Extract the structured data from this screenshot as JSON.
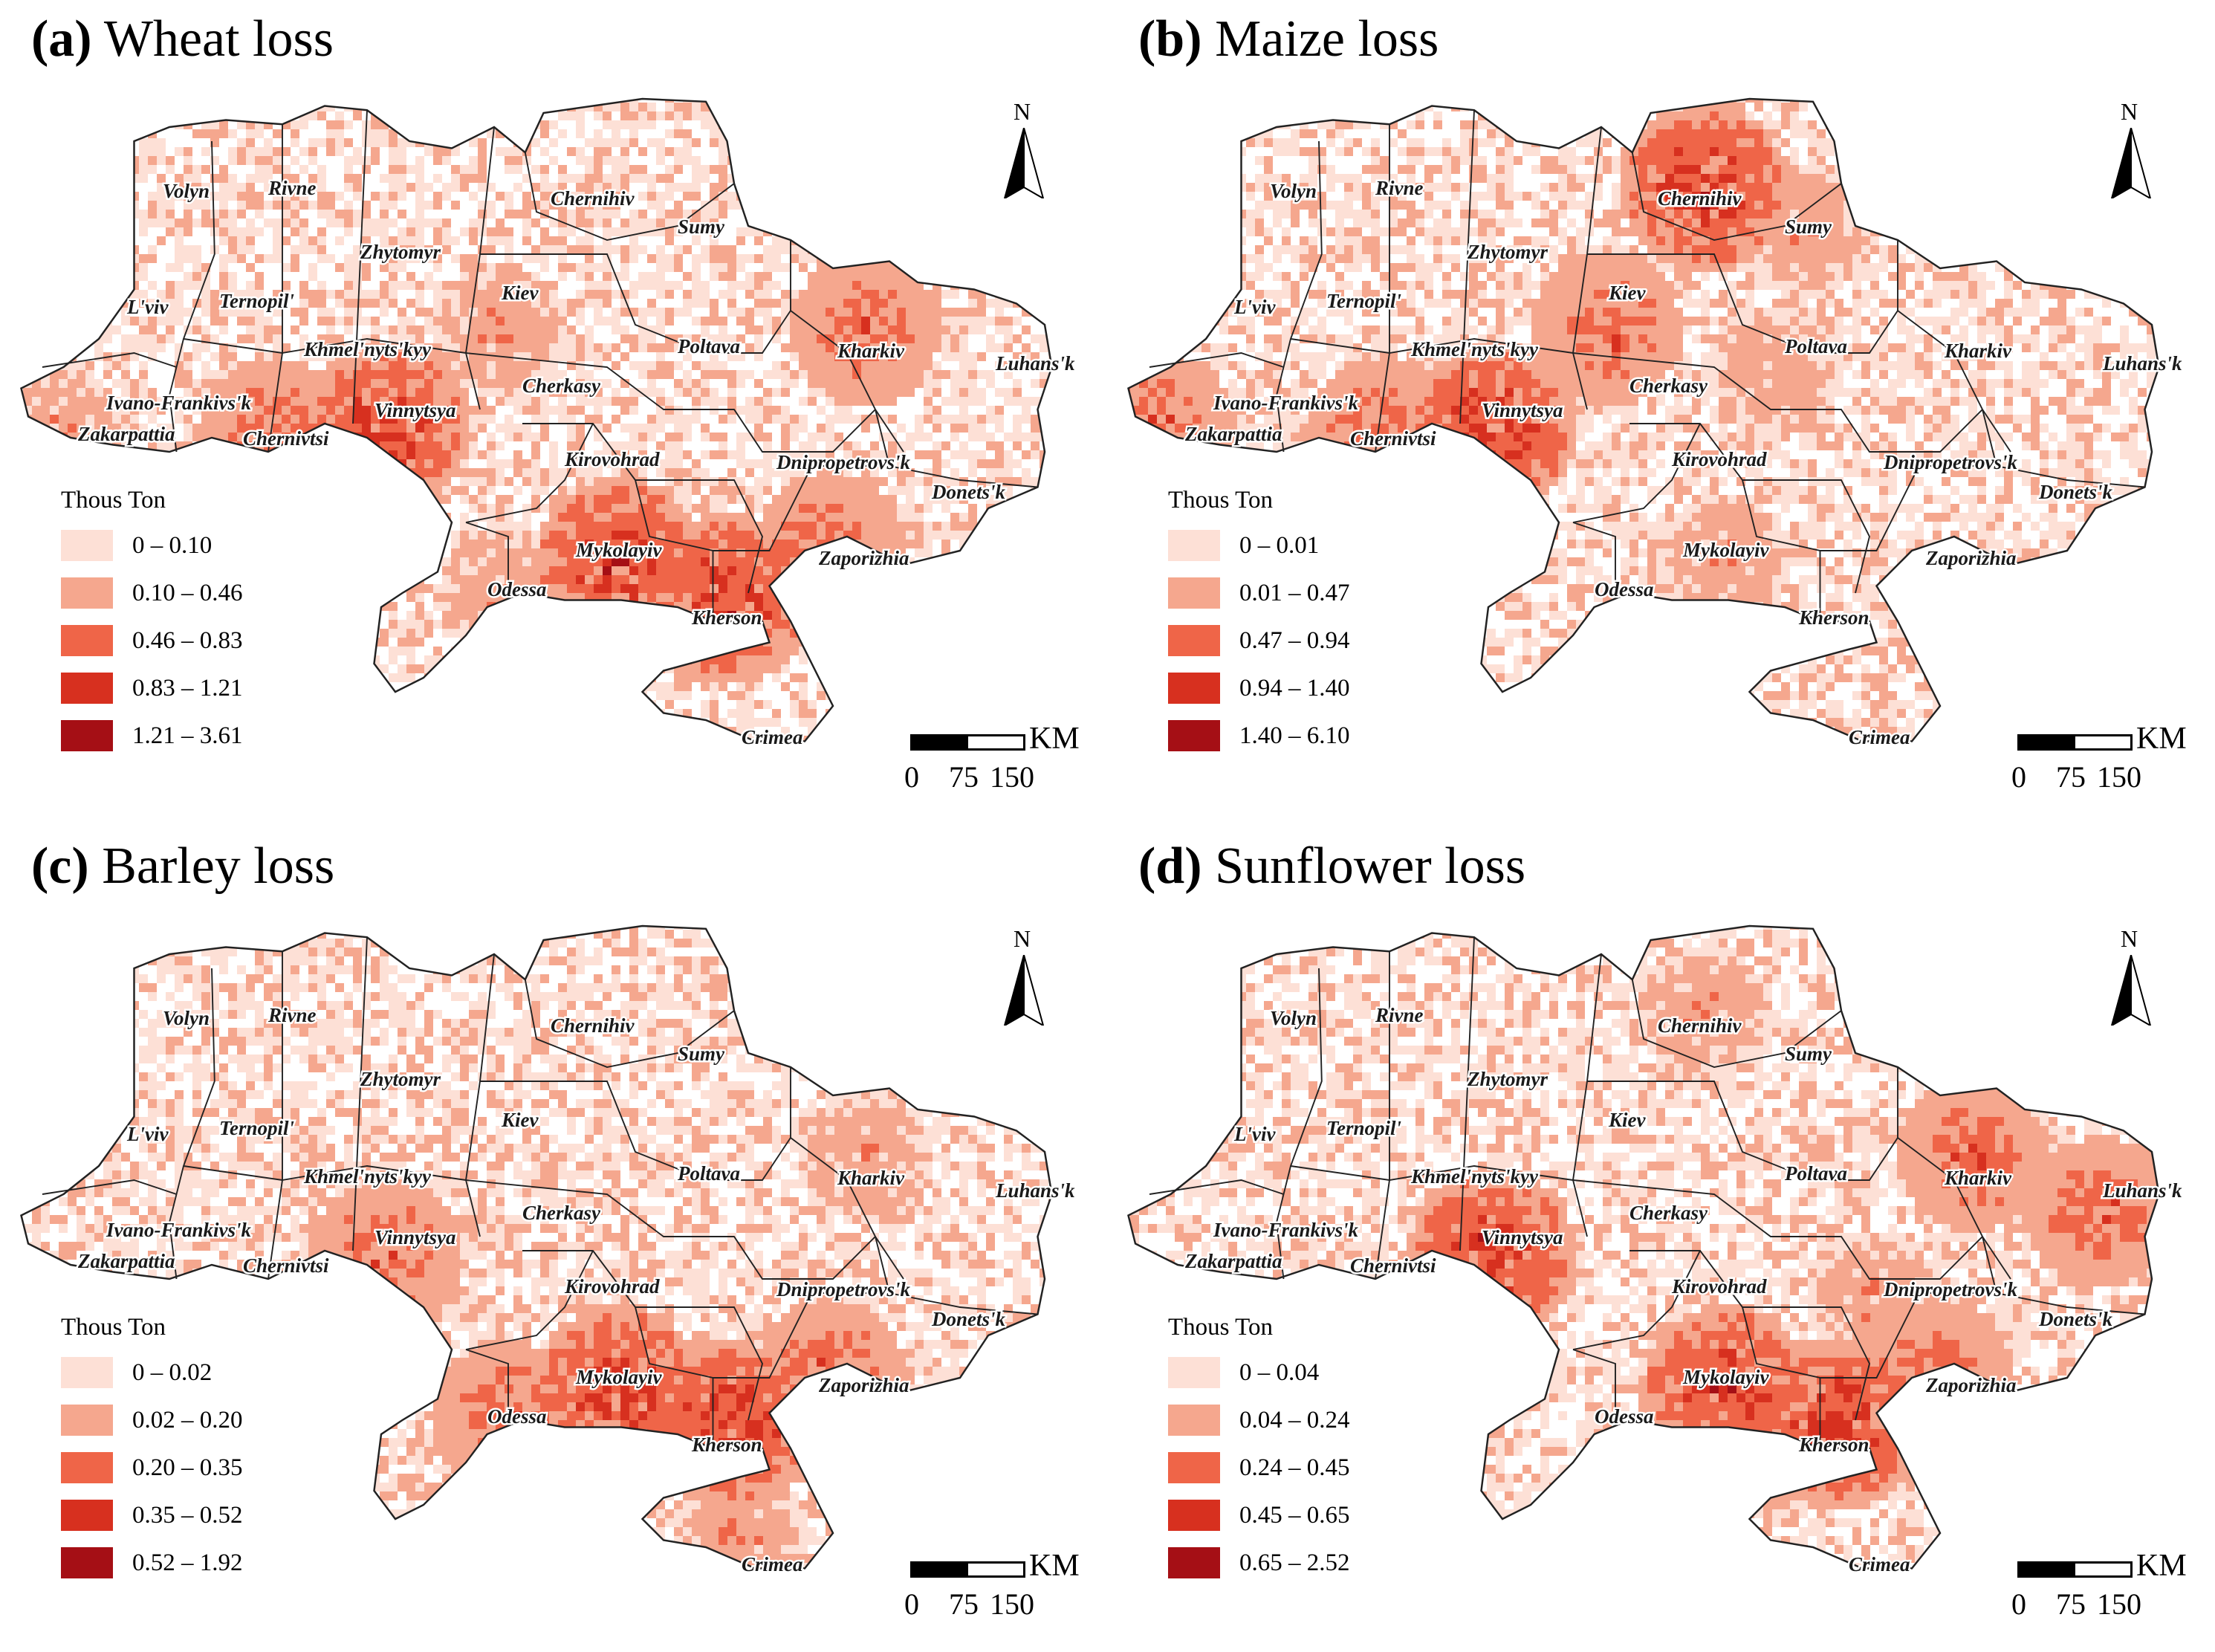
{
  "panels": [
    {
      "letter": "(a)",
      "title": "Wheat loss",
      "legend_title": "Thous Ton",
      "classes": [
        "0 – 0.10",
        "0.10 – 0.46",
        "0.46 – 0.83",
        "0.83 – 1.21",
        "1.21 – 3.61"
      ],
      "hotspots": [
        {
          "region": "Vinnytsya",
          "level": 5
        },
        {
          "region": "Chernivtsi",
          "level": 4
        },
        {
          "region": "Mykolayiv",
          "level": 5
        },
        {
          "region": "Kherson",
          "level": 5
        },
        {
          "region": "Zaporizhia",
          "level": 4
        },
        {
          "region": "Kharkiv",
          "level": 4
        },
        {
          "region": "Odessa",
          "level": 3
        },
        {
          "region": "Kiev",
          "level": 3
        },
        {
          "region": "Zakarpattia",
          "level": 3
        }
      ]
    },
    {
      "letter": "(b)",
      "title": "Maize loss",
      "legend_title": "Thous Ton",
      "classes": [
        "0 – 0.01",
        "0.01 – 0.47",
        "0.47 – 0.94",
        "0.94 – 1.40",
        "1.40 – 6.10"
      ],
      "hotspots": [
        {
          "region": "Vinnytsya",
          "level": 5
        },
        {
          "region": "Chernihiv",
          "level": 5
        },
        {
          "region": "Kiev",
          "level": 4
        },
        {
          "region": "Chernivtsi",
          "level": 4
        },
        {
          "region": "Zakarpattia",
          "level": 4
        },
        {
          "region": "Poltava",
          "level": 3
        },
        {
          "region": "Sumy",
          "level": 3
        },
        {
          "region": "Mykolayiv",
          "level": 3
        }
      ]
    },
    {
      "letter": "(c)",
      "title": "Barley loss",
      "legend_title": "Thous Ton",
      "classes": [
        "0 – 0.02",
        "0.02 – 0.20",
        "0.20 – 0.35",
        "0.35 – 0.52",
        "0.52 – 1.92"
      ],
      "hotspots": [
        {
          "region": "Mykolayiv",
          "level": 5
        },
        {
          "region": "Kherson",
          "level": 5
        },
        {
          "region": "Vinnytsya",
          "level": 4
        },
        {
          "region": "Odessa",
          "level": 4
        },
        {
          "region": "Zaporizhia",
          "level": 4
        },
        {
          "region": "Kharkiv",
          "level": 3
        },
        {
          "region": "Crimea",
          "level": 3
        }
      ]
    },
    {
      "letter": "(d)",
      "title": "Sunflower loss",
      "legend_title": "Thous Ton",
      "classes": [
        "0 – 0.04",
        "0.04 – 0.24",
        "0.24 – 0.45",
        "0.45 – 0.65",
        "0.65 – 2.52"
      ],
      "hotspots": [
        {
          "region": "Mykolayiv",
          "level": 5
        },
        {
          "region": "Kherson",
          "level": 5
        },
        {
          "region": "Vinnytsya",
          "level": 5
        },
        {
          "region": "Kharkiv",
          "level": 4
        },
        {
          "region": "Luhans'k",
          "level": 4
        },
        {
          "region": "Zaporizhia",
          "level": 4
        },
        {
          "region": "Dnipropetrovs'k",
          "level": 3
        },
        {
          "region": "Chernihiv",
          "level": 3
        }
      ]
    }
  ],
  "region_names": [
    "Volyn",
    "Rivne",
    "Zhytomyr",
    "Chernihiv",
    "Sumy",
    "Kiev",
    "L'viv",
    "Ternopil'",
    "Khmel'nyts'kyy",
    "Poltava",
    "Kharkiv",
    "Luhans'k",
    "Ivano-Frankivs'k",
    "Cherkasy",
    "Vinnytsya",
    "Zakarpattia",
    "Chernivtsi",
    "Kirovohrad",
    "Dnipropetrovs'k",
    "Donets'k",
    "Mykolayiv",
    "Zaporizhia",
    "Odessa",
    "Kherson",
    "Crimea"
  ],
  "north_label": "N",
  "scale": {
    "unit": "KM",
    "ticks": [
      "0",
      "75",
      "150"
    ]
  },
  "colors": [
    "#fde0d6",
    "#f5a78e",
    "#ef6548",
    "#d7301f",
    "#a50f15"
  ]
}
